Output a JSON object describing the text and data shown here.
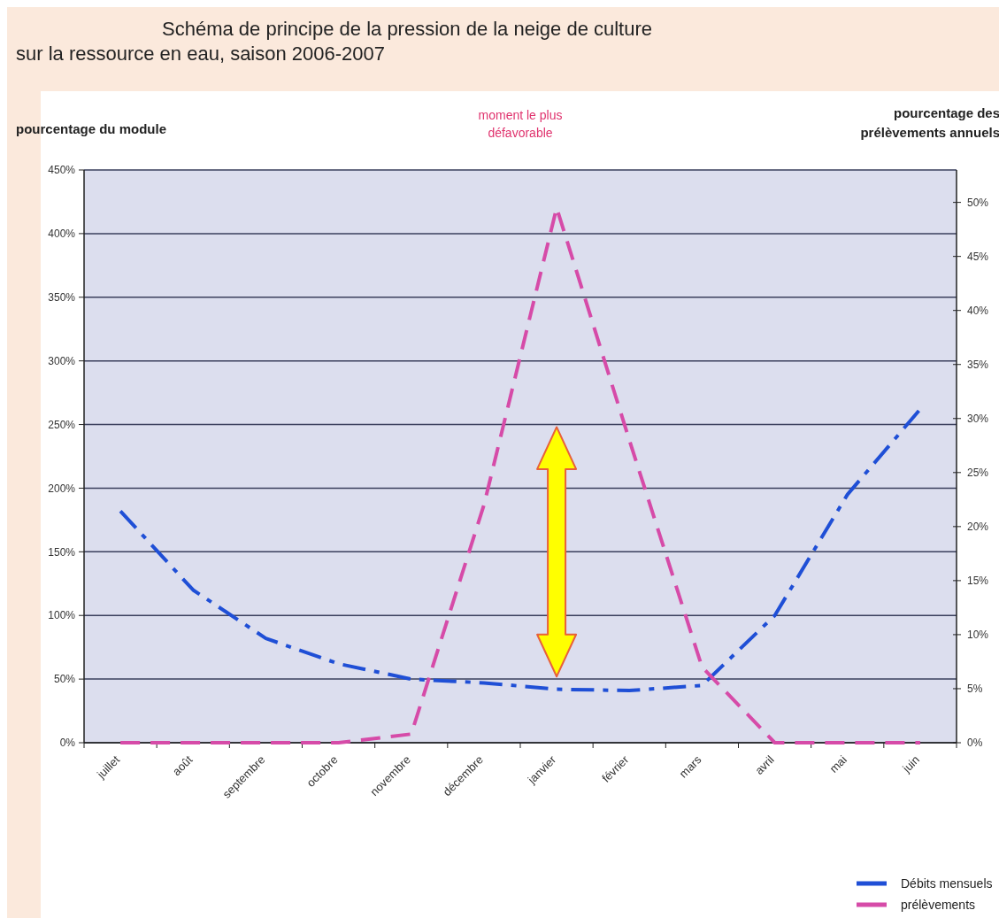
{
  "chart_data": {
    "type": "line",
    "title": "Schéma de principe de la pression de la neige de culture\nsur la ressource en eau, saison 2006-2007",
    "ylabel": "pourcentage du module",
    "y2label": "pourcentage des\nprélèvements annuels",
    "categories": [
      "juillet",
      "août",
      "septembre",
      "octobre",
      "novembre",
      "décembre",
      "janvier",
      "février",
      "mars",
      "avril",
      "mai",
      "juin"
    ],
    "series": [
      {
        "name": "Débits mensuels",
        "color": "#1f4fd6",
        "line_style": "dashdot",
        "values": [
          182,
          120,
          82,
          62,
          50,
          47,
          42,
          41,
          45,
          100,
          195,
          262
        ]
      },
      {
        "name": "prélèvements",
        "color": "#d64ba8",
        "line_style": "dashed",
        "axis": "y2",
        "values": [
          0,
          0,
          0,
          0,
          0.8,
          22,
          49.5,
          28,
          7,
          0,
          0,
          0
        ]
      }
    ],
    "ylim": [
      0,
      450
    ],
    "yticks": [
      {
        "value": 0,
        "label": "0%"
      },
      {
        "value": 50,
        "label": "50%"
      },
      {
        "value": 100,
        "label": "100%"
      },
      {
        "value": 150,
        "label": "150%"
      },
      {
        "value": 200,
        "label": "200%"
      },
      {
        "value": 250,
        "label": "250%"
      },
      {
        "value": 300,
        "label": "300%"
      },
      {
        "value": 350,
        "label": "350%"
      },
      {
        "value": 400,
        "label": "400%"
      },
      {
        "value": 450,
        "label": "450%"
      }
    ],
    "y2lim": [
      0,
      53
    ],
    "y2ticks": [
      {
        "value": 0,
        "label": "0%"
      },
      {
        "value": 5,
        "label": "5%"
      },
      {
        "value": 10,
        "label": "10%"
      },
      {
        "value": 15,
        "label": "15%"
      },
      {
        "value": 20,
        "label": "20%"
      },
      {
        "value": 25,
        "label": "25%"
      },
      {
        "value": 30,
        "label": "30%"
      },
      {
        "value": 35,
        "label": "35%"
      },
      {
        "value": 40,
        "label": "40%"
      },
      {
        "value": 45,
        "label": "45%"
      },
      {
        "value": 50,
        "label": "50%"
      }
    ],
    "grid": "y",
    "legend": "bottom right",
    "marker": "none",
    "annotations": [
      "moment le plus défavorable"
    ]
  }
}
